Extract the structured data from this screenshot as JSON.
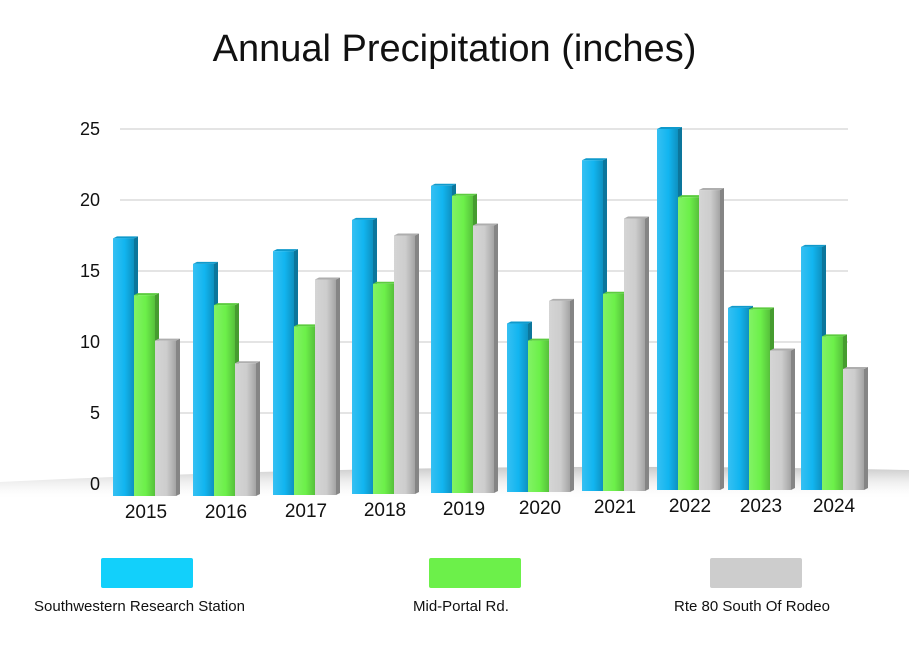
{
  "chart_data": {
    "type": "bar",
    "title": "Annual Precipitation (inches)",
    "xlabel": "",
    "ylabel": "",
    "ylim": [
      0,
      25
    ],
    "yticks": [
      0,
      5,
      10,
      15,
      20,
      25
    ],
    "grid": true,
    "legend_position": "bottom",
    "categories": [
      "2015",
      "2016",
      "2017",
      "2018",
      "2019",
      "2020",
      "2021",
      "2022",
      "2023",
      "2024"
    ],
    "series": [
      {
        "name": "Southwestern Research Station",
        "color": "#12b5f0",
        "values": [
          17.3,
          15.5,
          16.4,
          18.6,
          21.0,
          11.3,
          22.8,
          25.0,
          12.4,
          16.7
        ]
      },
      {
        "name": "Mid-Portal Rd.",
        "color": "#6cf04a",
        "values": [
          13.3,
          12.6,
          11.1,
          14.1,
          20.3,
          10.1,
          13.4,
          20.2,
          12.3,
          10.4
        ]
      },
      {
        "name": "Rte 80 South Of Rodeo",
        "color": "#cdcdcd",
        "values": [
          10.1,
          8.5,
          14.4,
          17.5,
          18.2,
          12.9,
          18.7,
          20.7,
          9.4,
          8.1
        ]
      }
    ]
  }
}
